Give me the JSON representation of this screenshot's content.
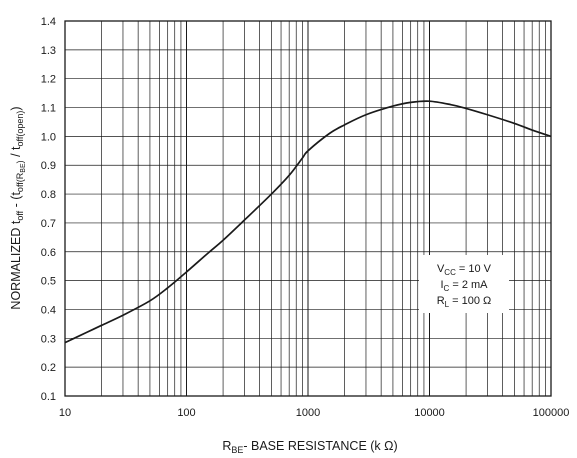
{
  "chart_data": {
    "type": "line",
    "x_scale": "log",
    "grid": true,
    "xlim": [
      10,
      100000
    ],
    "ylim": [
      0.1,
      1.4
    ],
    "x_ticks": [
      "10",
      "100",
      "1000",
      "10000",
      "100000"
    ],
    "y_ticks": [
      "0.1",
      "0.2",
      "0.3",
      "0.4",
      "0.5",
      "0.6",
      "0.7",
      "0.8",
      "0.9",
      "1.0",
      "1.1",
      "1.2",
      "1.3",
      "1.4"
    ],
    "xlabel": {
      "pre": "R",
      "sub": "BE",
      "post": "- BASE RESISTANCE (k Ω)"
    },
    "ylabel": {
      "p1": "NORMALIZED t",
      "s1": "off",
      "p2": " - (t",
      "s2": "off(R",
      "s2b": "BE",
      "s2c": ")",
      "p3": " / t",
      "s3": "off(open)",
      "p4": ")"
    },
    "conditions": [
      {
        "pre": "V",
        "sub": "CC",
        "post": " = 10 V"
      },
      {
        "pre": "I",
        "sub": "C",
        "post": " = 2 mA"
      },
      {
        "pre": "R",
        "sub": "L",
        "post": " = 100 Ω"
      }
    ],
    "series": [
      {
        "color": "#1a1a1a",
        "x": [
          10,
          15,
          20,
          30,
          50,
          70,
          100,
          150,
          200,
          300,
          500,
          700,
          900,
          1000,
          1500,
          2000,
          3000,
          5000,
          7000,
          10000,
          15000,
          20000,
          30000,
          50000,
          70000,
          100000
        ],
        "y": [
          0.285,
          0.32,
          0.345,
          0.38,
          0.43,
          0.475,
          0.53,
          0.595,
          0.64,
          0.71,
          0.8,
          0.865,
          0.925,
          0.95,
          1.01,
          1.04,
          1.075,
          1.105,
          1.118,
          1.122,
          1.11,
          1.097,
          1.075,
          1.045,
          1.022,
          1.0
        ]
      }
    ]
  }
}
